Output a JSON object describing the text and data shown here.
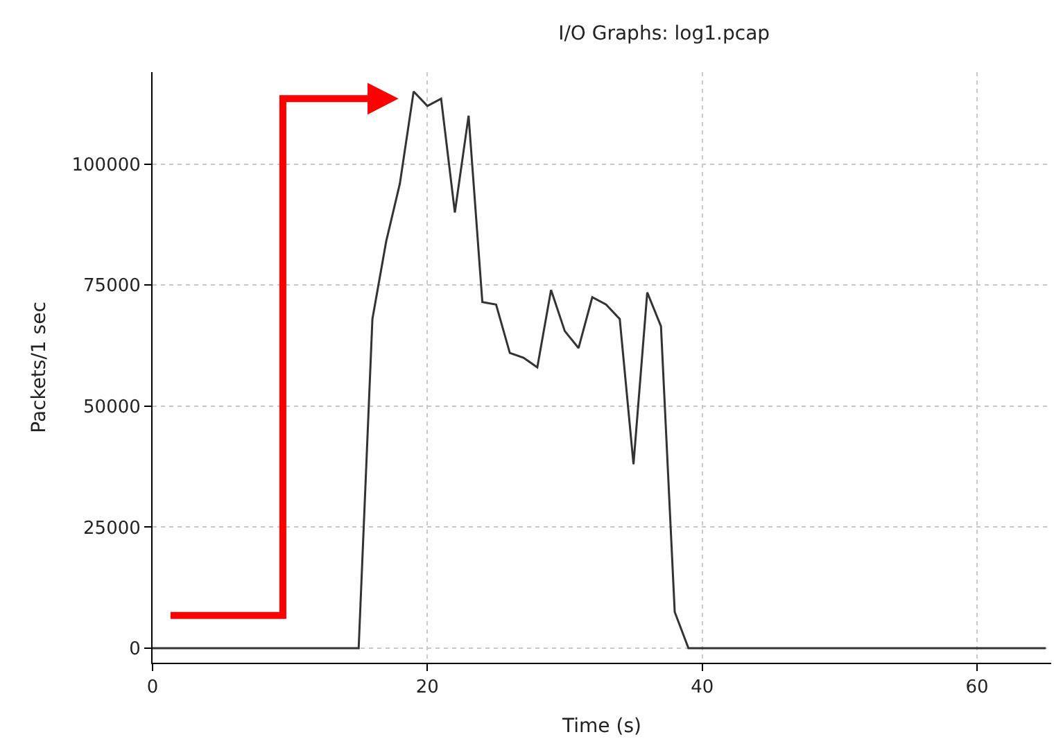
{
  "chart_data": {
    "type": "line",
    "title": "I/O Graphs: log1.pcap",
    "xlabel": "Time (s)",
    "ylabel": "Packets/1 sec",
    "x": [
      0,
      1,
      2,
      3,
      4,
      5,
      6,
      7,
      8,
      9,
      10,
      11,
      12,
      13,
      14,
      15,
      16,
      17,
      18,
      19,
      20,
      21,
      22,
      23,
      24,
      25,
      26,
      27,
      28,
      29,
      30,
      31,
      32,
      33,
      34,
      35,
      36,
      37,
      38,
      39,
      40,
      41,
      42,
      43,
      44,
      45,
      46,
      47,
      48,
      49,
      50,
      51,
      52,
      53,
      54,
      55,
      56,
      57,
      58,
      59,
      60,
      61,
      62,
      63,
      64,
      65
    ],
    "series": [
      {
        "color": "#333333",
        "values": [
          0,
          0,
          0,
          0,
          0,
          0,
          0,
          0,
          0,
          0,
          0,
          0,
          0,
          0,
          0,
          0,
          68000,
          84000,
          96000,
          115000,
          112000,
          113500,
          90000,
          110000,
          71500,
          71000,
          61000,
          60000,
          58000,
          74000,
          65500,
          62000,
          72500,
          71000,
          68000,
          38000,
          73500,
          66500,
          7500,
          0,
          0,
          0,
          0,
          0,
          0,
          0,
          0,
          0,
          0,
          0,
          0,
          0,
          0,
          0,
          0,
          0,
          0,
          0,
          0,
          0,
          0,
          0,
          0,
          0,
          0,
          0
        ]
      }
    ],
    "xlim": [
      0,
      65.4
    ],
    "ylim": [
      -3000,
      119000
    ],
    "xticks": [
      0,
      20,
      40,
      60
    ],
    "yticks": [
      0,
      25000,
      50000,
      75000,
      100000
    ],
    "grid": true,
    "legend": false,
    "marker": "none",
    "line_style": "solid"
  }
}
